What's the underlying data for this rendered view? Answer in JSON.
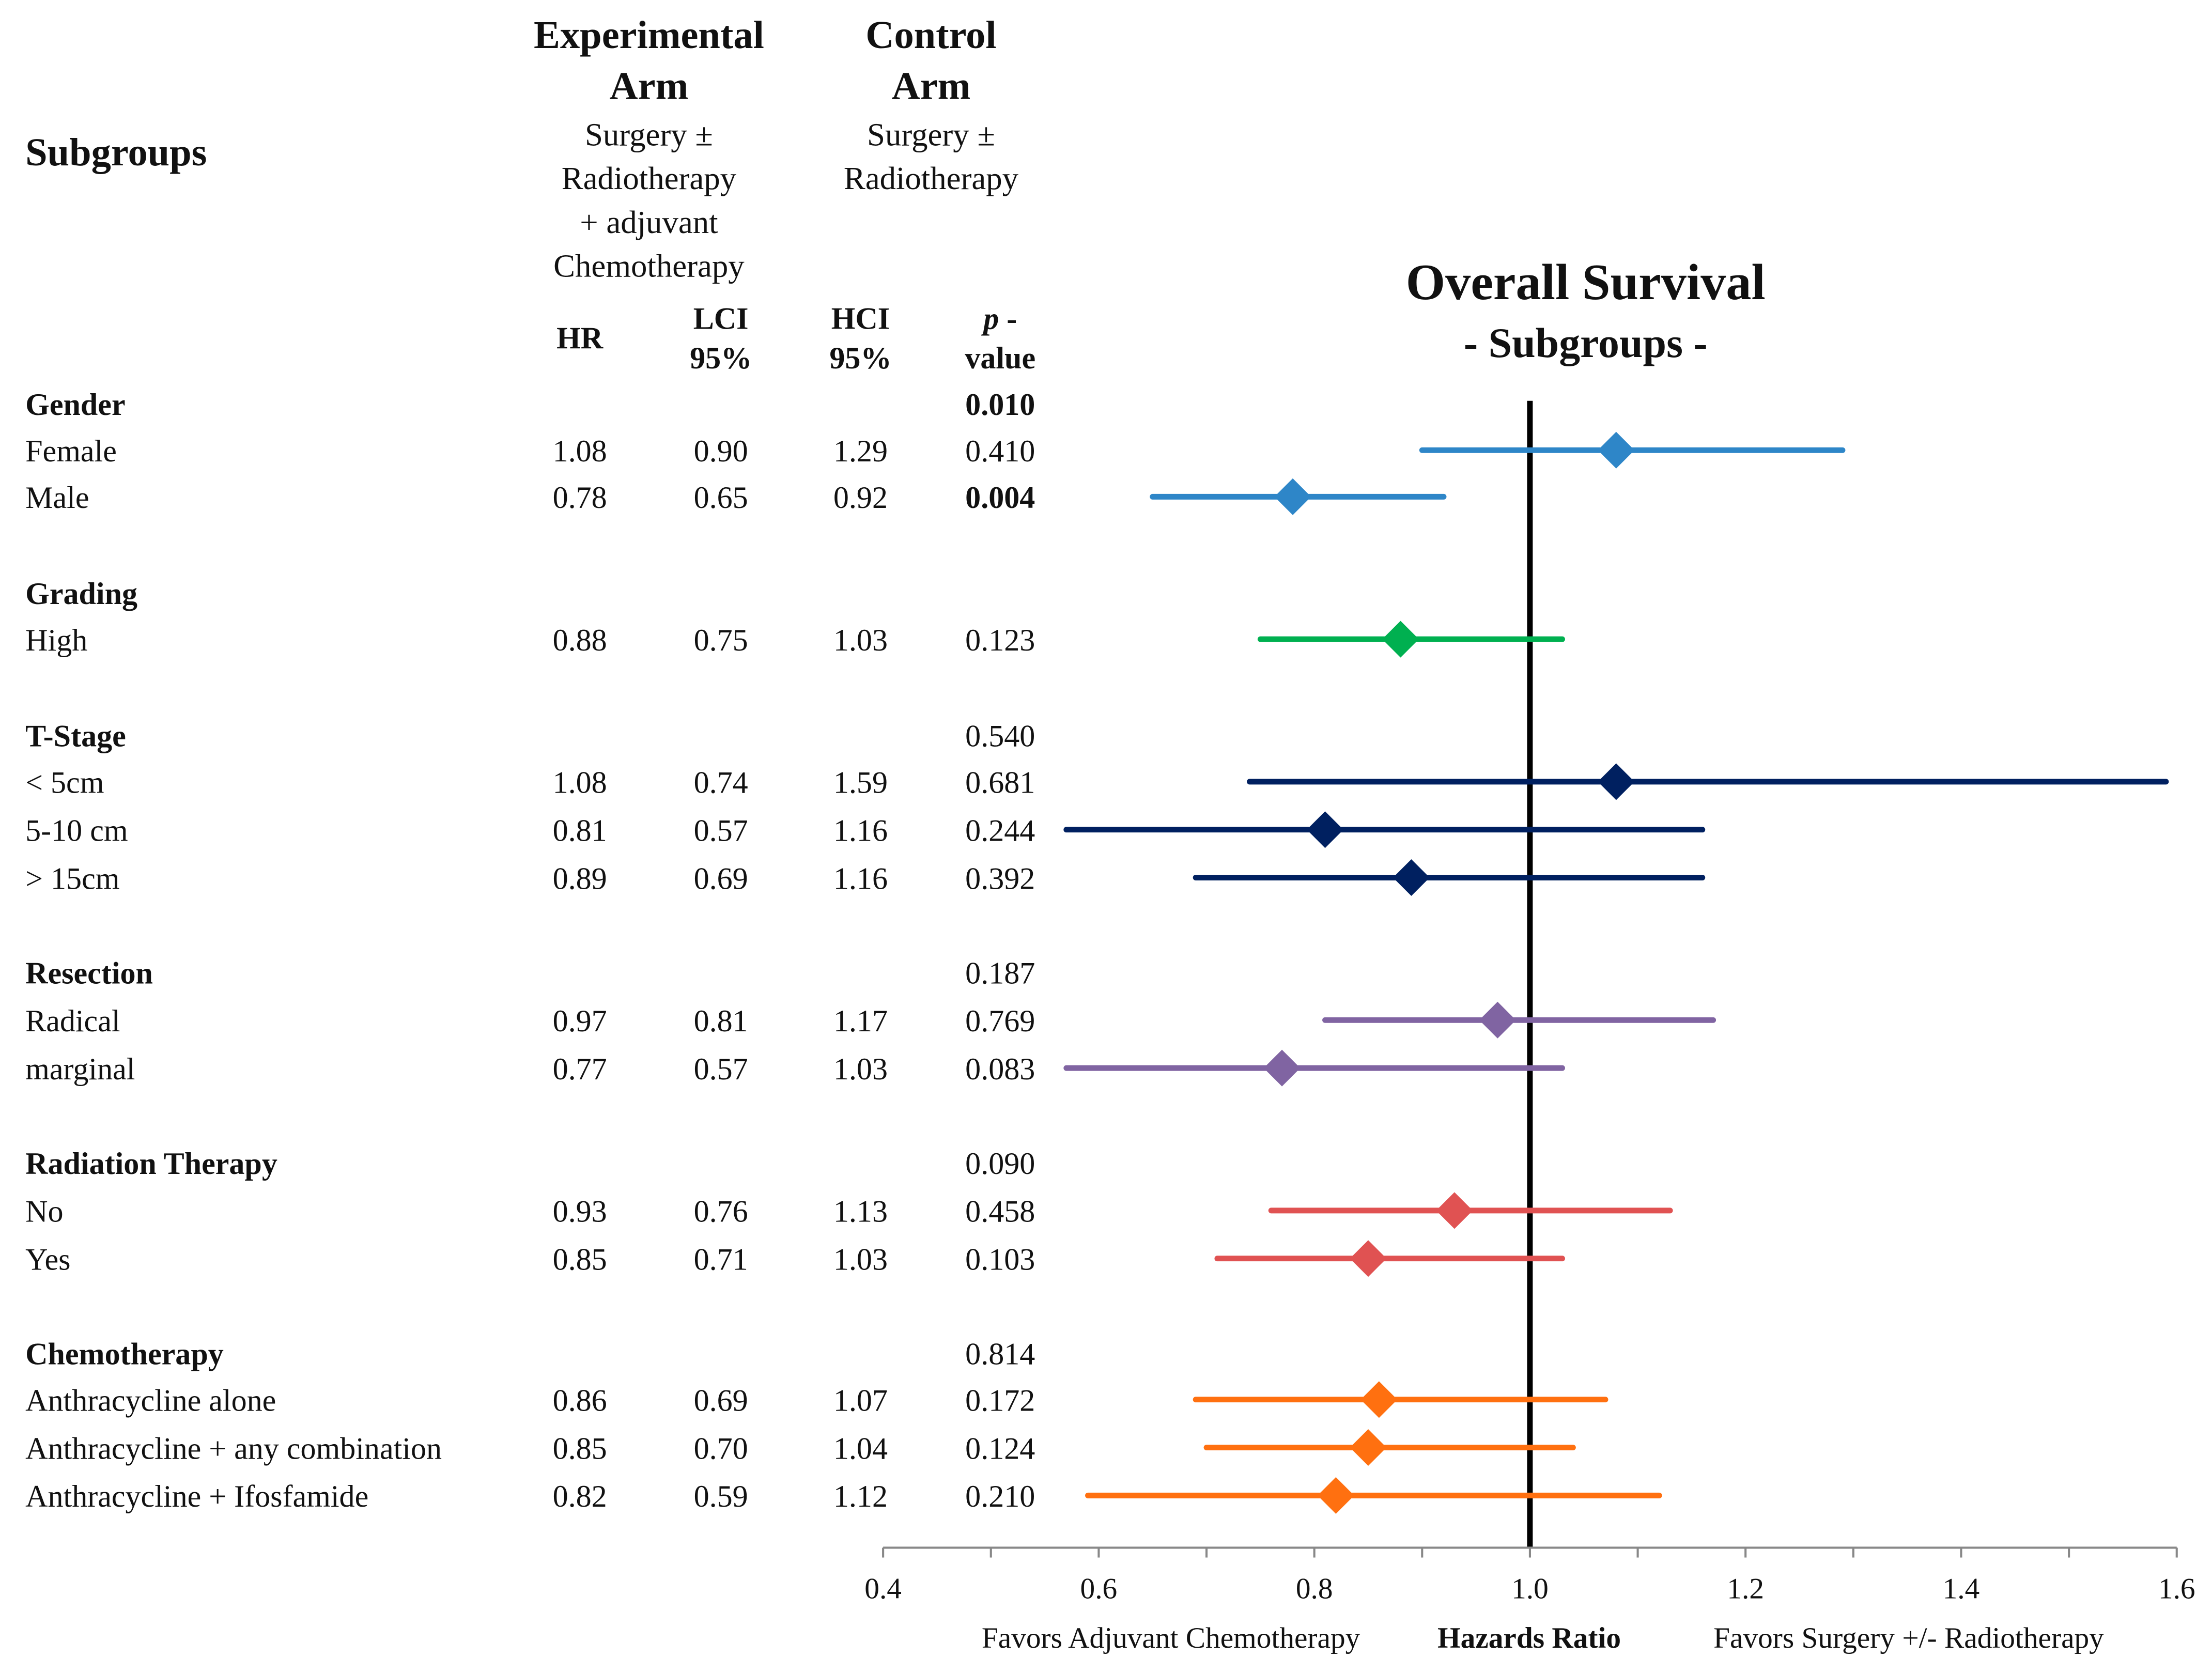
{
  "header": {
    "subgroups": "Subgroups",
    "experimental": [
      "Experimental",
      "Arm",
      "Surgery ±",
      "Radiotherapy",
      "+ adjuvant",
      "Chemotherapy"
    ],
    "control": [
      "Control",
      "Arm",
      "Surgery ±",
      "Radiotherapy"
    ],
    "col_hr": "HR",
    "col_lci": [
      "LCI",
      "95%"
    ],
    "col_hci": [
      "HCI",
      "95%"
    ],
    "col_p": [
      "p",
      " -",
      "value"
    ]
  },
  "chart_data": {
    "type": "forest",
    "title": "Overall Survival",
    "subtitle": "- Subgroups -",
    "xlabel": "Hazards Ratio",
    "xlabel_left": "Favors Adjuvant Chemotherapy",
    "xlabel_right": "Favors Surgery +/- Radiotherapy",
    "xlim": [
      0.4,
      1.6
    ],
    "xticks": [
      "0.4",
      "0.6",
      "0.8",
      "1.0",
      "1.2",
      "1.4",
      "1.6"
    ],
    "reference_line": 1.0,
    "groups": [
      {
        "name": "Gender",
        "p": "0.010",
        "p_bold": true,
        "color": "#2e86c8",
        "rows": [
          {
            "label": "Female",
            "hr": "1.08",
            "lci": "0.90",
            "hci": "1.29",
            "p": "0.410",
            "p_bold": false
          },
          {
            "label": "Male",
            "hr": "0.78",
            "lci": "0.65",
            "hci": "0.92",
            "p": "0.004",
            "p_bold": true
          }
        ]
      },
      {
        "name": "Grading",
        "p": "",
        "p_bold": false,
        "color": "#00b050",
        "rows": [
          {
            "label": "High",
            "hr": "0.88",
            "lci": "0.75",
            "hci": "1.03",
            "p": "0.123",
            "p_bold": false
          }
        ]
      },
      {
        "name": "T-Stage",
        "p": "0.540",
        "p_bold": false,
        "color": "#002060",
        "rows": [
          {
            "label": "< 5cm",
            "hr": "1.08",
            "lci": "0.74",
            "hci": "1.59",
            "p": "0.681",
            "p_bold": false
          },
          {
            "label": "5-10 cm",
            "hr": "0.81",
            "lci": "0.57",
            "hci": "1.16",
            "p": "0.244",
            "p_bold": false
          },
          {
            "label": "> 15cm",
            "hr": "0.89",
            "lci": "0.69",
            "hci": "1.16",
            "p": "0.392",
            "p_bold": false
          }
        ]
      },
      {
        "name": "Resection",
        "p": "0.187",
        "p_bold": false,
        "color": "#8064a2",
        "rows": [
          {
            "label": "Radical",
            "hr": "0.97",
            "lci": "0.81",
            "hci": "1.17",
            "p": "0.769",
            "p_bold": false
          },
          {
            "label": "marginal",
            "hr": "0.77",
            "lci": "0.57",
            "hci": "1.03",
            "p": "0.083",
            "p_bold": false
          }
        ]
      },
      {
        "name": "Radiation Therapy",
        "p": "0.090",
        "p_bold": false,
        "color": "#e05252",
        "rows": [
          {
            "label": "No",
            "hr": "0.93",
            "lci": "0.76",
            "hci": "1.13",
            "p": "0.458",
            "p_bold": false
          },
          {
            "label": "Yes",
            "hr": "0.85",
            "lci": "0.71",
            "hci": "1.03",
            "p": "0.103",
            "p_bold": false
          }
        ]
      },
      {
        "name": "Chemotherapy",
        "p": "0.814",
        "p_bold": false,
        "color": "#ff7010",
        "rows": [
          {
            "label": "Anthracycline alone",
            "hr": "0.86",
            "lci": "0.69",
            "hci": "1.07",
            "p": "0.172",
            "p_bold": false
          },
          {
            "label": "Anthracycline + any combination",
            "hr": "0.85",
            "lci": "0.70",
            "hci": "1.04",
            "p": "0.124",
            "p_bold": false
          },
          {
            "label": "Anthracycline  + Ifosfamide",
            "hr": "0.82",
            "lci": "0.59",
            "hci": "1.12",
            "p": "0.210",
            "p_bold": false
          }
        ]
      }
    ]
  }
}
